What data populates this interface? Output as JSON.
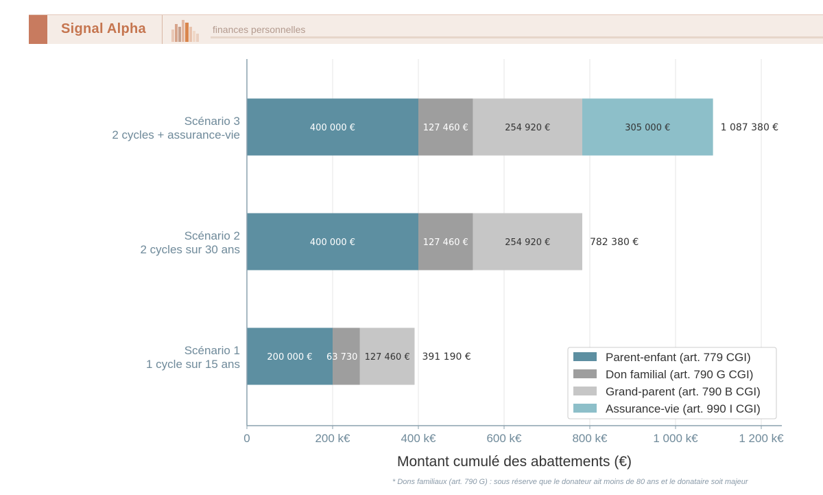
{
  "header": {
    "brand": "Signal Alpha",
    "subtitle": "finances personnelles"
  },
  "colors": {
    "parent_enfant": "#5d8fa1",
    "don_familial": "#9e9e9e",
    "grand_parent": "#c6c6c6",
    "assurance_vie": "#8dbfc9",
    "axis_text": "#6f8a9a",
    "accent": "#c87b5f"
  },
  "chart_data": {
    "type": "bar",
    "orientation": "horizontal",
    "stacked": true,
    "categories": [
      [
        "Scénario 1",
        "1 cycle sur 15 ans"
      ],
      [
        "Scénario 2",
        "2 cycles sur 30 ans"
      ],
      [
        "Scénario 3",
        "2 cycles + assurance-vie"
      ]
    ],
    "series": [
      {
        "name": "Parent-enfant (art. 779 CGI)",
        "values": [
          200000,
          400000,
          400000
        ],
        "labels": [
          "200 000 €",
          "400 000 €",
          "400 000 €"
        ]
      },
      {
        "name": "Don familial (art. 790 G CGI)",
        "values": [
          63730,
          127460,
          127460
        ],
        "labels": [
          "63 730 €",
          "127 460 €",
          "127 460 €"
        ]
      },
      {
        "name": "Grand-parent (art. 790 B CGI)",
        "values": [
          127460,
          254920,
          254920
        ],
        "labels": [
          "127 460 €",
          "254 920 €",
          "254 920 €"
        ]
      },
      {
        "name": "Assurance-vie (art. 990 I CGI)",
        "values": [
          0,
          0,
          305000
        ],
        "labels": [
          "",
          "",
          "305 000 €"
        ]
      }
    ],
    "totals": [
      "391 190 €",
      "782 380 €",
      "1 087 380 €"
    ],
    "xlabel": "Montant cumulé des abattements (€)",
    "xticks": [
      0,
      200000,
      400000,
      600000,
      800000,
      1000000,
      1200000
    ],
    "xtick_labels": [
      "0",
      "200 k€",
      "400 k€",
      "600 k€",
      "800 k€",
      "1 000 k€",
      "1 200 k€"
    ],
    "xlim": [
      0,
      1250000
    ],
    "grid": "vertical",
    "legend_position": "bottom-right"
  },
  "footnote": "* Dons familiaux (art. 790 G) : sous réserve que le donateur ait moins de 80 ans et le donataire soit majeur"
}
